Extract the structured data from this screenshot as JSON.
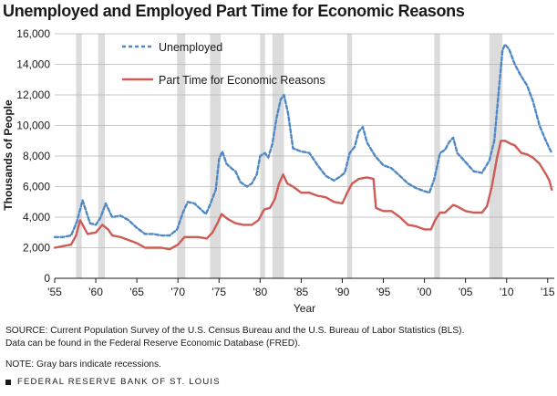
{
  "header": {
    "title": "Unemployed and Employed Part Time for Economic Reasons"
  },
  "notes": {
    "source_line1": "SOURCE: Current Population Survey of the U.S. Census Bureau and the U.S. Bureau of Labor Statistics (BLS).",
    "source_line2": "Data can be found in the Federal Reserve Economic Database (FRED).",
    "note": "NOTE: Gray bars indicate recessions."
  },
  "footer": {
    "text": "FEDERAL RESERVE BANK OF ST. LOUIS"
  },
  "chart_data": {
    "type": "line",
    "title": "Unemployed and Employed Part Time for Economic Reasons",
    "xlabel": "Year",
    "ylabel": "Thousands of People",
    "xlim": [
      1955,
      2015.8
    ],
    "ylim": [
      0,
      16000
    ],
    "grid": "horizontal",
    "legend_position": "top-left",
    "x_ticks": [
      1955,
      1960,
      1965,
      1970,
      1975,
      1980,
      1985,
      1990,
      1995,
      2000,
      2005,
      2010,
      2015
    ],
    "x_tick_labels": [
      "'55",
      "'60",
      "'65",
      "'70",
      "'75",
      "'80",
      "'85",
      "'90",
      "'95",
      "'00",
      "'05",
      "'10",
      "'15"
    ],
    "y_ticks": [
      0,
      2000,
      4000,
      6000,
      8000,
      10000,
      12000,
      14000,
      16000
    ],
    "y_tick_labels": [
      "0",
      "2,000",
      "4,000",
      "6,000",
      "8,000",
      "10,000",
      "12,000",
      "14,000",
      "16,000"
    ],
    "recessions": [
      [
        1957.6,
        1958.3
      ],
      [
        1960.3,
        1961.1
      ],
      [
        1969.9,
        1970.9
      ],
      [
        1973.9,
        1975.2
      ],
      [
        1980.0,
        1980.6
      ],
      [
        1981.5,
        1982.9
      ],
      [
        1990.6,
        1991.2
      ],
      [
        2001.2,
        2001.9
      ],
      [
        2007.9,
        2009.5
      ]
    ],
    "recession_color": "#dcdcdc",
    "series": [
      {
        "name": "Unemployed",
        "color": "#4f88c6",
        "style": "dashed",
        "x": [
          1955.0,
          1956.0,
          1957.0,
          1957.7,
          1958.4,
          1959.3,
          1960.0,
          1960.6,
          1961.2,
          1962.0,
          1963.0,
          1964.0,
          1965.0,
          1966.0,
          1967.0,
          1968.0,
          1969.0,
          1969.9,
          1970.6,
          1971.2,
          1972.0,
          1972.6,
          1973.4,
          1973.9,
          1974.6,
          1975.0,
          1975.4,
          1975.9,
          1976.5,
          1977.0,
          1977.6,
          1978.4,
          1979.0,
          1979.6,
          1980.0,
          1980.6,
          1981.0,
          1981.5,
          1982.0,
          1982.5,
          1982.9,
          1983.4,
          1984.0,
          1985.0,
          1986.0,
          1987.0,
          1988.0,
          1989.0,
          1989.6,
          1990.3,
          1990.9,
          1991.5,
          1992.0,
          1992.5,
          1993.0,
          1994.0,
          1995.0,
          1996.0,
          1997.0,
          1998.0,
          1999.0,
          2000.0,
          2000.6,
          2001.2,
          2001.9,
          2002.5,
          2003.0,
          2003.5,
          2004.0,
          2005.0,
          2006.0,
          2007.0,
          2007.9,
          2008.5,
          2009.0,
          2009.5,
          2009.8,
          2010.3,
          2011.0,
          2011.7,
          2012.5,
          2013.2,
          2014.0,
          2014.7,
          2015.2,
          2015.5
        ],
        "values": [
          2700,
          2700,
          2800,
          3700,
          5100,
          3600,
          3500,
          4000,
          4900,
          4000,
          4100,
          3800,
          3300,
          2900,
          2900,
          2800,
          2800,
          3200,
          4300,
          5000,
          4900,
          4600,
          4200,
          4800,
          5800,
          7800,
          8300,
          7500,
          7200,
          7000,
          6300,
          6000,
          6200,
          6800,
          8000,
          8200,
          7900,
          8800,
          10500,
          11700,
          12000,
          10800,
          8500,
          8300,
          8200,
          7400,
          6700,
          6400,
          6600,
          6900,
          8200,
          8600,
          9600,
          9900,
          8900,
          8000,
          7400,
          7200,
          6700,
          6200,
          5900,
          5700,
          5600,
          6500,
          8200,
          8400,
          8900,
          9200,
          8200,
          7600,
          7000,
          6900,
          7700,
          9000,
          12000,
          14900,
          15300,
          15000,
          14000,
          13300,
          12600,
          11600,
          10000,
          9100,
          8500,
          8200
        ]
      },
      {
        "name": "Part Time for Economic Reasons",
        "color": "#cc5c55",
        "style": "solid",
        "x": [
          1955.0,
          1956.0,
          1957.0,
          1957.6,
          1958.1,
          1959.0,
          1960.0,
          1960.8,
          1961.5,
          1962.0,
          1963.0,
          1964.0,
          1965.0,
          1966.0,
          1967.0,
          1968.0,
          1969.0,
          1970.0,
          1970.8,
          1971.5,
          1972.5,
          1973.5,
          1974.2,
          1974.8,
          1975.3,
          1976.0,
          1977.0,
          1978.0,
          1979.0,
          1979.8,
          1980.5,
          1981.2,
          1981.8,
          1982.3,
          1982.8,
          1983.3,
          1984.0,
          1985.0,
          1986.0,
          1987.0,
          1988.0,
          1989.0,
          1990.0,
          1990.6,
          1991.2,
          1992.0,
          1993.0,
          1993.8,
          1994.1,
          1995.0,
          1996.0,
          1997.0,
          1998.0,
          1999.0,
          2000.0,
          2000.8,
          2001.3,
          2001.9,
          2002.5,
          2003.5,
          2004.0,
          2005.0,
          2006.0,
          2007.0,
          2007.6,
          2008.2,
          2008.8,
          2009.3,
          2009.8,
          2010.5,
          2011.0,
          2011.8,
          2012.5,
          2013.2,
          2014.0,
          2014.8,
          2015.2,
          2015.5
        ],
        "values": [
          2000,
          2100,
          2200,
          2800,
          3800,
          2900,
          3000,
          3500,
          3200,
          2800,
          2700,
          2500,
          2300,
          2000,
          2000,
          2000,
          1900,
          2200,
          2700,
          2700,
          2700,
          2600,
          3000,
          3600,
          4200,
          3900,
          3600,
          3500,
          3500,
          3800,
          4500,
          4600,
          5200,
          6200,
          6800,
          6200,
          6000,
          5600,
          5600,
          5400,
          5300,
          5000,
          4900,
          5600,
          6200,
          6500,
          6600,
          6500,
          4600,
          4400,
          4400,
          4000,
          3500,
          3400,
          3200,
          3200,
          3800,
          4300,
          4300,
          4800,
          4700,
          4400,
          4300,
          4300,
          4700,
          6000,
          7800,
          9000,
          9000,
          8800,
          8700,
          8200,
          8100,
          7900,
          7500,
          6800,
          6400,
          5800
        ]
      }
    ]
  }
}
